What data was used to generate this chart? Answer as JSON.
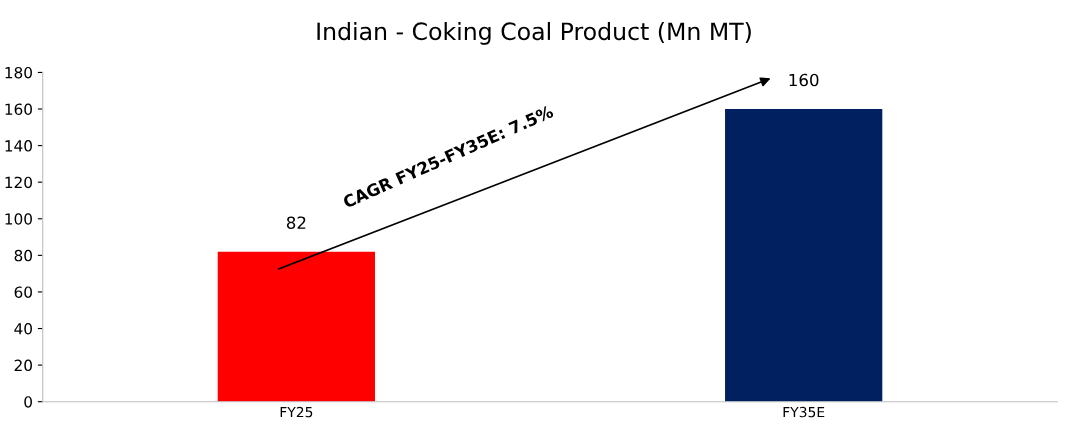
{
  "chart_data": {
    "type": "bar",
    "title": "Indian - Coking Coal Product (Mn MT)",
    "categories": [
      "FY25",
      "FY35E"
    ],
    "values": [
      82,
      160
    ],
    "colors": [
      "#ff0000",
      "#002060"
    ],
    "ylim": [
      0,
      180
    ],
    "yticks": [
      0,
      20,
      40,
      60,
      80,
      100,
      120,
      140,
      160,
      180
    ],
    "data_labels": true,
    "grid": false,
    "legend": false,
    "annotations": [
      "CAGR FY25-FY35E: 7.5%"
    ]
  }
}
